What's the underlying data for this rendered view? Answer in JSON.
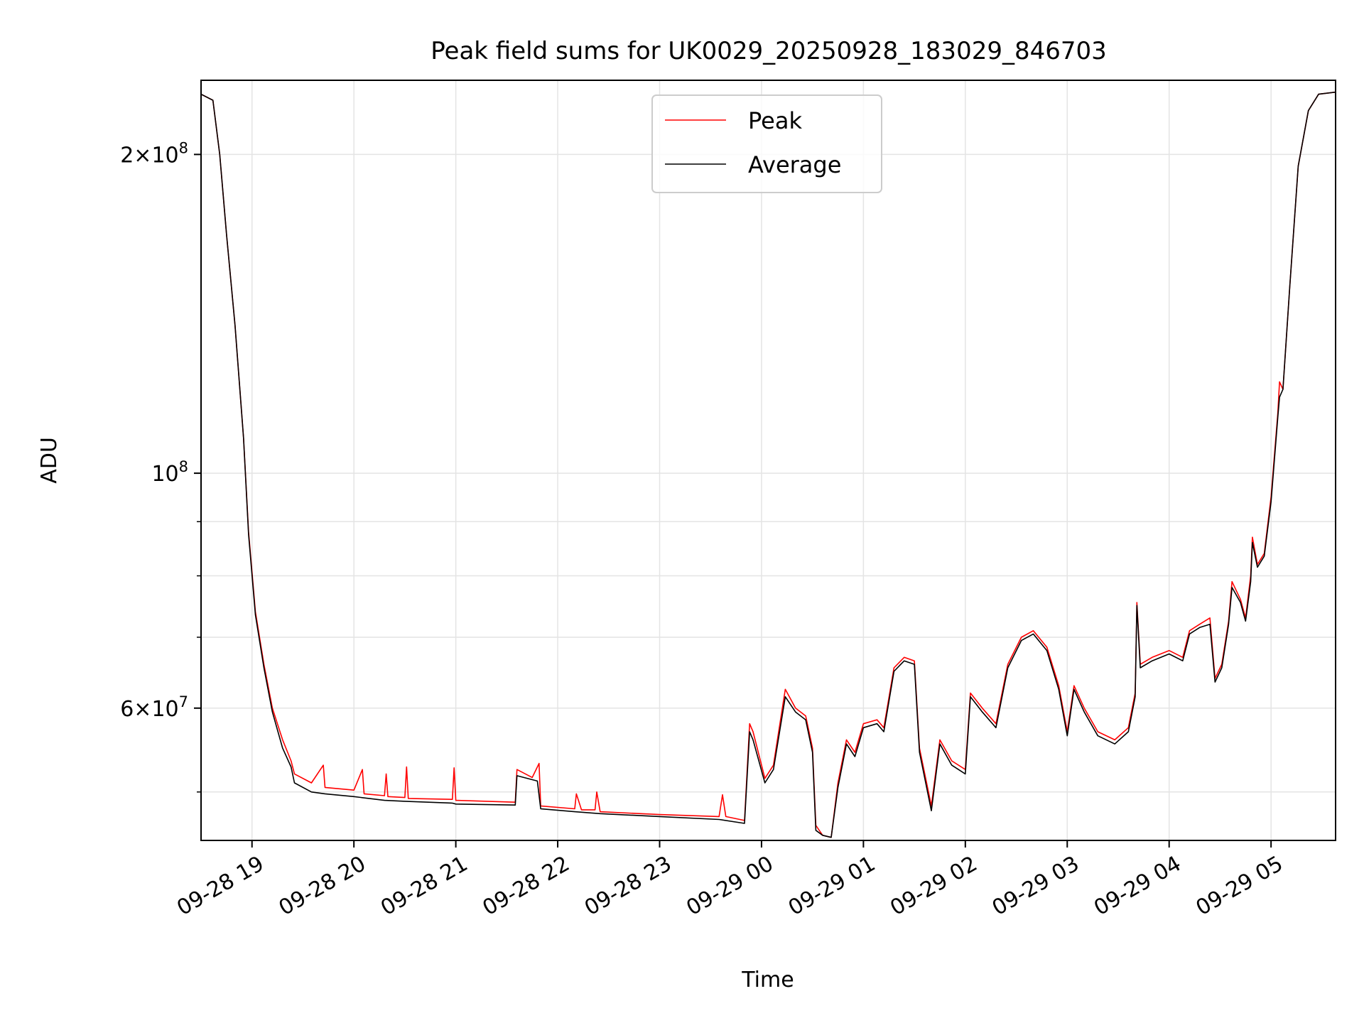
{
  "chart_data": {
    "type": "line",
    "title": "Peak field sums for UK0029_20250928_183029_846703",
    "xlabel": "Time",
    "ylabel": "ADU",
    "y_scale": "log",
    "ylim": [
      45000000,
      235000000
    ],
    "xlim": [
      "2025-09-28 18:30",
      "2025-09-29 05:38"
    ],
    "grid": true,
    "legend": "top-center",
    "x_ticks": [
      {
        "t": "2025-09-28 19:00",
        "label": "09-28 19"
      },
      {
        "t": "2025-09-28 20:00",
        "label": "09-28 20"
      },
      {
        "t": "2025-09-28 21:00",
        "label": "09-28 21"
      },
      {
        "t": "2025-09-28 22:00",
        "label": "09-28 22"
      },
      {
        "t": "2025-09-28 23:00",
        "label": "09-28 23"
      },
      {
        "t": "2025-09-29 00:00",
        "label": "09-29 00"
      },
      {
        "t": "2025-09-29 01:00",
        "label": "09-29 01"
      },
      {
        "t": "2025-09-29 02:00",
        "label": "09-29 02"
      },
      {
        "t": "2025-09-29 03:00",
        "label": "09-29 03"
      },
      {
        "t": "2025-09-29 04:00",
        "label": "09-29 04"
      },
      {
        "t": "2025-09-29 05:00",
        "label": "09-29 05"
      }
    ],
    "y_major_ticks": [
      {
        "v": 100000000,
        "mant": "",
        "exp": "8"
      },
      {
        "v": 200000000,
        "mant": "2",
        "exp": "8"
      },
      {
        "v": 60000000,
        "mant": "6",
        "exp": "7"
      }
    ],
    "y_minor_ticks": [
      50000000,
      70000000,
      80000000,
      90000000
    ],
    "series": [
      {
        "name": "Peak",
        "color": "#ff0000",
        "points": [
          [
            "2025-09-28 18:30",
            228000000
          ],
          [
            "2025-09-28 18:37",
            225000000
          ],
          [
            "2025-09-28 18:41",
            200000000
          ],
          [
            "2025-09-28 18:45",
            168000000
          ],
          [
            "2025-09-28 18:50",
            138000000
          ],
          [
            "2025-09-28 18:55",
            108000000
          ],
          [
            "2025-09-28 18:58",
            88000000
          ],
          [
            "2025-09-28 19:02",
            74000000
          ],
          [
            "2025-09-28 19:07",
            66000000
          ],
          [
            "2025-09-28 19:12",
            60000000
          ],
          [
            "2025-09-28 19:18",
            56000000
          ],
          [
            "2025-09-28 19:23",
            53500000
          ],
          [
            "2025-09-28 19:25",
            52000000
          ],
          [
            "2025-09-28 19:35",
            51000000
          ],
          [
            "2025-09-28 19:42",
            53000000
          ],
          [
            "2025-09-28 19:43",
            50500000
          ],
          [
            "2025-09-28 20:00",
            50200000
          ],
          [
            "2025-09-28 20:05",
            52500000
          ],
          [
            "2025-09-28 20:06",
            49800000
          ],
          [
            "2025-09-28 20:18",
            49600000
          ],
          [
            "2025-09-28 20:19",
            52000000
          ],
          [
            "2025-09-28 20:20",
            49500000
          ],
          [
            "2025-09-28 20:30",
            49400000
          ],
          [
            "2025-09-28 20:31",
            52800000
          ],
          [
            "2025-09-28 20:32",
            49300000
          ],
          [
            "2025-09-28 20:58",
            49200000
          ],
          [
            "2025-09-28 20:59",
            52700000
          ],
          [
            "2025-09-28 21:00",
            49100000
          ],
          [
            "2025-09-28 21:35",
            48900000
          ],
          [
            "2025-09-28 21:36",
            52500000
          ],
          [
            "2025-09-28 21:45",
            51600000
          ],
          [
            "2025-09-28 21:49",
            53200000
          ],
          [
            "2025-09-28 21:50",
            48500000
          ],
          [
            "2025-09-28 22:10",
            48200000
          ],
          [
            "2025-09-28 22:11",
            49800000
          ],
          [
            "2025-09-28 22:14",
            48100000
          ],
          [
            "2025-09-28 22:22",
            48100000
          ],
          [
            "2025-09-28 22:23",
            50000000
          ],
          [
            "2025-09-28 22:25",
            47900000
          ],
          [
            "2025-09-28 23:00",
            47600000
          ],
          [
            "2025-09-28 23:35",
            47400000
          ],
          [
            "2025-09-28 23:37",
            49700000
          ],
          [
            "2025-09-28 23:39",
            47400000
          ],
          [
            "2025-09-28 23:50",
            47000000
          ],
          [
            "2025-09-28 23:53",
            58000000
          ],
          [
            "2025-09-28 23:55",
            57000000
          ],
          [
            "2025-09-29 00:02",
            51500000
          ],
          [
            "2025-09-29 00:07",
            53000000
          ],
          [
            "2025-09-29 00:14",
            62500000
          ],
          [
            "2025-09-29 00:20",
            60000000
          ],
          [
            "2025-09-29 00:26",
            59000000
          ],
          [
            "2025-09-29 00:30",
            55000000
          ],
          [
            "2025-09-29 00:32",
            46500000
          ],
          [
            "2025-09-29 00:36",
            45500000
          ],
          [
            "2025-09-29 00:41",
            45300000
          ],
          [
            "2025-09-29 00:45",
            51000000
          ],
          [
            "2025-09-29 00:50",
            56000000
          ],
          [
            "2025-09-29 00:55",
            54500000
          ],
          [
            "2025-09-29 01:00",
            58000000
          ],
          [
            "2025-09-29 01:08",
            58500000
          ],
          [
            "2025-09-29 01:12",
            57500000
          ],
          [
            "2025-09-29 01:18",
            65500000
          ],
          [
            "2025-09-29 01:22",
            66500000
          ],
          [
            "2025-09-29 01:24",
            67000000
          ],
          [
            "2025-09-29 01:30",
            66500000
          ],
          [
            "2025-09-29 01:33",
            55000000
          ],
          [
            "2025-09-29 01:40",
            48500000
          ],
          [
            "2025-09-29 01:45",
            56000000
          ],
          [
            "2025-09-29 01:52",
            53500000
          ],
          [
            "2025-09-29 02:00",
            52500000
          ],
          [
            "2025-09-29 02:03",
            62000000
          ],
          [
            "2025-09-29 02:10",
            60000000
          ],
          [
            "2025-09-29 02:18",
            58000000
          ],
          [
            "2025-09-29 02:25",
            66000000
          ],
          [
            "2025-09-29 02:33",
            70000000
          ],
          [
            "2025-09-29 02:40",
            71000000
          ],
          [
            "2025-09-29 02:48",
            68500000
          ],
          [
            "2025-09-29 02:55",
            63000000
          ],
          [
            "2025-09-29 03:00",
            57000000
          ],
          [
            "2025-09-29 03:04",
            63000000
          ],
          [
            "2025-09-29 03:10",
            60000000
          ],
          [
            "2025-09-29 03:18",
            57000000
          ],
          [
            "2025-09-29 03:28",
            56000000
          ],
          [
            "2025-09-29 03:36",
            57500000
          ],
          [
            "2025-09-29 03:40",
            62000000
          ],
          [
            "2025-09-29 03:41",
            75500000
          ],
          [
            "2025-09-29 03:43",
            66000000
          ],
          [
            "2025-09-29 03:50",
            67000000
          ],
          [
            "2025-09-29 04:00",
            68000000
          ],
          [
            "2025-09-29 04:08",
            67000000
          ],
          [
            "2025-09-29 04:12",
            71000000
          ],
          [
            "2025-09-29 04:18",
            72000000
          ],
          [
            "2025-09-29 04:24",
            73000000
          ],
          [
            "2025-09-29 04:27",
            64000000
          ],
          [
            "2025-09-29 04:31",
            66000000
          ],
          [
            "2025-09-29 04:35",
            72500000
          ],
          [
            "2025-09-29 04:37",
            79000000
          ],
          [
            "2025-09-29 04:42",
            76000000
          ],
          [
            "2025-09-29 04:45",
            73000000
          ],
          [
            "2025-09-29 04:48",
            80000000
          ],
          [
            "2025-09-29 04:49",
            87000000
          ],
          [
            "2025-09-29 04:52",
            82000000
          ],
          [
            "2025-09-29 04:56",
            84000000
          ],
          [
            "2025-09-29 05:00",
            95000000
          ],
          [
            "2025-09-29 05:04",
            114000000
          ],
          [
            "2025-09-29 05:05",
            122000000
          ],
          [
            "2025-09-29 05:07",
            120000000
          ],
          [
            "2025-09-29 05:11",
            150000000
          ],
          [
            "2025-09-29 05:16",
            195000000
          ],
          [
            "2025-09-29 05:22",
            220000000
          ],
          [
            "2025-09-29 05:28",
            228000000
          ],
          [
            "2025-09-29 05:38",
            229000000
          ]
        ]
      },
      {
        "name": "Average",
        "color": "#000000",
        "points": [
          [
            "2025-09-28 18:30",
            228000000
          ],
          [
            "2025-09-28 18:37",
            225000000
          ],
          [
            "2025-09-28 18:41",
            200000000
          ],
          [
            "2025-09-28 18:45",
            168000000
          ],
          [
            "2025-09-28 18:50",
            138000000
          ],
          [
            "2025-09-28 18:55",
            108000000
          ],
          [
            "2025-09-28 18:58",
            87500000
          ],
          [
            "2025-09-28 19:02",
            73500000
          ],
          [
            "2025-09-28 19:07",
            65500000
          ],
          [
            "2025-09-28 19:12",
            59500000
          ],
          [
            "2025-09-28 19:18",
            55000000
          ],
          [
            "2025-09-28 19:23",
            52800000
          ],
          [
            "2025-09-28 19:25",
            51000000
          ],
          [
            "2025-09-28 19:35",
            50000000
          ],
          [
            "2025-09-28 19:43",
            49800000
          ],
          [
            "2025-09-28 20:00",
            49500000
          ],
          [
            "2025-09-28 20:18",
            49100000
          ],
          [
            "2025-09-28 20:30",
            49000000
          ],
          [
            "2025-09-28 20:58",
            48800000
          ],
          [
            "2025-09-28 21:00",
            48700000
          ],
          [
            "2025-09-28 21:35",
            48600000
          ],
          [
            "2025-09-28 21:36",
            51800000
          ],
          [
            "2025-09-28 21:48",
            51200000
          ],
          [
            "2025-09-28 21:50",
            48200000
          ],
          [
            "2025-09-28 22:10",
            47900000
          ],
          [
            "2025-09-28 22:25",
            47700000
          ],
          [
            "2025-09-28 23:00",
            47400000
          ],
          [
            "2025-09-28 23:35",
            47100000
          ],
          [
            "2025-09-28 23:50",
            46700000
          ],
          [
            "2025-09-28 23:53",
            57000000
          ],
          [
            "2025-09-28 23:55",
            56000000
          ],
          [
            "2025-09-29 00:02",
            51000000
          ],
          [
            "2025-09-29 00:07",
            52500000
          ],
          [
            "2025-09-29 00:14",
            61500000
          ],
          [
            "2025-09-29 00:20",
            59500000
          ],
          [
            "2025-09-29 00:26",
            58500000
          ],
          [
            "2025-09-29 00:30",
            54500000
          ],
          [
            "2025-09-29 00:32",
            46000000
          ],
          [
            "2025-09-29 00:36",
            45500000
          ],
          [
            "2025-09-29 00:41",
            45300000
          ],
          [
            "2025-09-29 00:45",
            50500000
          ],
          [
            "2025-09-29 00:50",
            55500000
          ],
          [
            "2025-09-29 00:55",
            54000000
          ],
          [
            "2025-09-29 01:00",
            57500000
          ],
          [
            "2025-09-29 01:08",
            58000000
          ],
          [
            "2025-09-29 01:12",
            57000000
          ],
          [
            "2025-09-29 01:18",
            65000000
          ],
          [
            "2025-09-29 01:22",
            66000000
          ],
          [
            "2025-09-29 01:24",
            66500000
          ],
          [
            "2025-09-29 01:30",
            66000000
          ],
          [
            "2025-09-29 01:33",
            54500000
          ],
          [
            "2025-09-29 01:40",
            48000000
          ],
          [
            "2025-09-29 01:45",
            55500000
          ],
          [
            "2025-09-29 01:52",
            53000000
          ],
          [
            "2025-09-29 02:00",
            52000000
          ],
          [
            "2025-09-29 02:03",
            61500000
          ],
          [
            "2025-09-29 02:10",
            59500000
          ],
          [
            "2025-09-29 02:18",
            57500000
          ],
          [
            "2025-09-29 02:25",
            65500000
          ],
          [
            "2025-09-29 02:33",
            69500000
          ],
          [
            "2025-09-29 02:40",
            70500000
          ],
          [
            "2025-09-29 02:48",
            68000000
          ],
          [
            "2025-09-29 02:55",
            62500000
          ],
          [
            "2025-09-29 03:00",
            56500000
          ],
          [
            "2025-09-29 03:04",
            62500000
          ],
          [
            "2025-09-29 03:10",
            59500000
          ],
          [
            "2025-09-29 03:18",
            56500000
          ],
          [
            "2025-09-29 03:28",
            55500000
          ],
          [
            "2025-09-29 03:36",
            57000000
          ],
          [
            "2025-09-29 03:40",
            61500000
          ],
          [
            "2025-09-29 03:41",
            75000000
          ],
          [
            "2025-09-29 03:43",
            65500000
          ],
          [
            "2025-09-29 03:50",
            66500000
          ],
          [
            "2025-09-29 04:00",
            67500000
          ],
          [
            "2025-09-29 04:08",
            66500000
          ],
          [
            "2025-09-29 04:12",
            70500000
          ],
          [
            "2025-09-29 04:18",
            71500000
          ],
          [
            "2025-09-29 04:24",
            72000000
          ],
          [
            "2025-09-29 04:27",
            63500000
          ],
          [
            "2025-09-29 04:31",
            65500000
          ],
          [
            "2025-09-29 04:35",
            72000000
          ],
          [
            "2025-09-29 04:37",
            78000000
          ],
          [
            "2025-09-29 04:42",
            75500000
          ],
          [
            "2025-09-29 04:45",
            72500000
          ],
          [
            "2025-09-29 04:48",
            79000000
          ],
          [
            "2025-09-29 04:49",
            86000000
          ],
          [
            "2025-09-29 04:52",
            81500000
          ],
          [
            "2025-09-29 04:56",
            83500000
          ],
          [
            "2025-09-29 05:00",
            94000000
          ],
          [
            "2025-09-29 05:04",
            113000000
          ],
          [
            "2025-09-29 05:05",
            118000000
          ],
          [
            "2025-09-29 05:07",
            120000000
          ],
          [
            "2025-09-29 05:11",
            150000000
          ],
          [
            "2025-09-29 05:16",
            195000000
          ],
          [
            "2025-09-29 05:22",
            220000000
          ],
          [
            "2025-09-29 05:28",
            228000000
          ],
          [
            "2025-09-29 05:38",
            229000000
          ]
        ]
      }
    ]
  }
}
